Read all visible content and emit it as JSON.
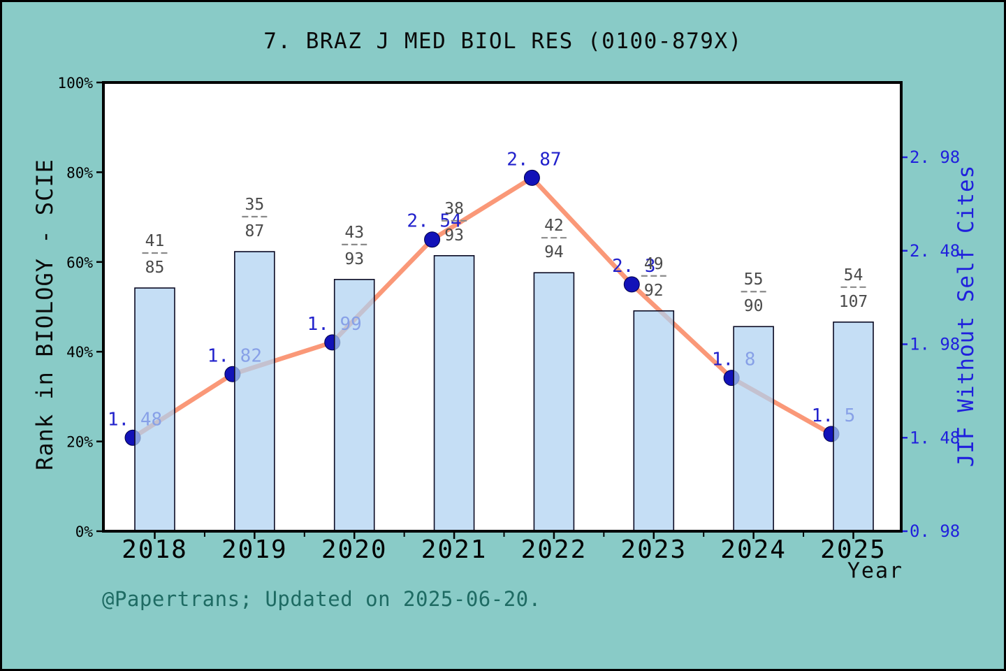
{
  "title": "7. BRAZ J MED BIOL RES (0100-879X)",
  "footer": "@Papertrans; Updated on 2025-06-20.",
  "colors": {
    "background": "#89CBC7",
    "plot_background": "#FFFFFF",
    "plot_border": "#000000",
    "bar_fill": "#AED1F1",
    "bar_border": "#0A0A23",
    "line": "#FA9878",
    "marker": "#1212B8",
    "marker_edge": "#00004A",
    "jif_label": "#2121CC",
    "right_axis_text": "#2020DD",
    "fraction_text": "#4A4A4A",
    "fraction_dash": "#8A8A8A",
    "footer_text": "#1E6B63",
    "axis_text": "#000000"
  },
  "chart_data": {
    "type": "bar+line combo",
    "categories": [
      "2018",
      "2019",
      "2020",
      "2021",
      "2022",
      "2023",
      "2024",
      "2025"
    ],
    "series": [
      {
        "name": "Rank in BIOLOGY - SCIE",
        "type": "bar",
        "axis": "left",
        "unit": "percent",
        "values": [
          54.2,
          62.3,
          56.1,
          61.4,
          57.6,
          49.1,
          45.6,
          46.6
        ],
        "rank_labels": [
          {
            "num": "41",
            "den": "85"
          },
          {
            "num": "35",
            "den": "87"
          },
          {
            "num": "43",
            "den": "93"
          },
          {
            "num": "38",
            "den": "93"
          },
          {
            "num": "42",
            "den": "94"
          },
          {
            "num": "49",
            "den": "92"
          },
          {
            "num": "55",
            "den": "90"
          },
          {
            "num": "54",
            "den": "107"
          }
        ]
      },
      {
        "name": "JIF Without Self Cites",
        "type": "line",
        "axis": "right",
        "values": [
          1.48,
          1.82,
          1.99,
          2.54,
          2.87,
          2.3,
          1.8,
          1.5
        ],
        "point_labels": [
          "1. 48",
          "1. 82",
          "1. 99",
          "2. 54",
          "2. 87",
          "2. 3",
          "1. 8",
          "1. 5"
        ]
      }
    ],
    "left_axis": {
      "title": "Rank in BIOLOGY - SCIE",
      "ticks": [
        "0%",
        "20%",
        "40%",
        "60%",
        "80%",
        "100%"
      ],
      "tick_values": [
        0,
        20,
        40,
        60,
        80,
        100
      ],
      "range": [
        0,
        100
      ]
    },
    "right_axis": {
      "title": "JIF Without Self Cites",
      "ticks": [
        "0. 98",
        "1. 48",
        "1. 98",
        "2. 48",
        "2. 98"
      ],
      "tick_values": [
        0.98,
        1.48,
        1.98,
        2.48,
        2.98
      ]
    },
    "x_axis": {
      "title": "Year",
      "ticks": [
        "2018",
        "2019",
        "2020",
        "2021",
        "2022",
        "2023",
        "2024",
        "2025"
      ]
    },
    "legend": "none",
    "grid": "off"
  }
}
